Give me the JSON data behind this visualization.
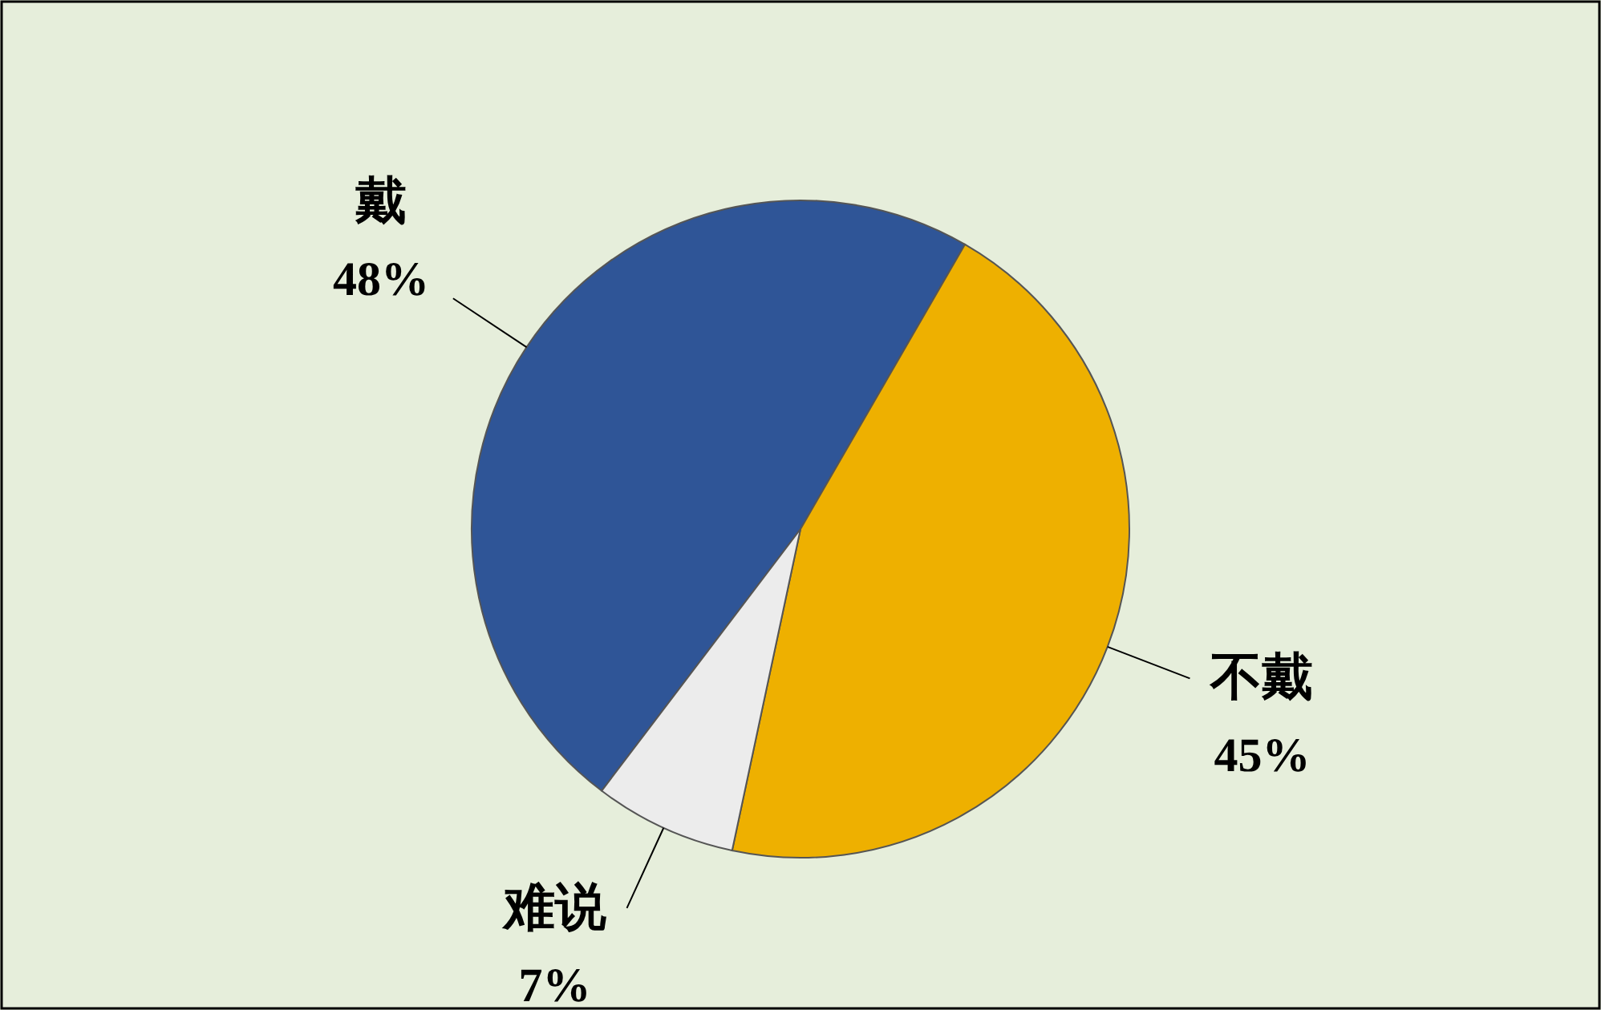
{
  "chart_data": {
    "type": "pie",
    "categories": [
      "戴",
      "不戴",
      "难说"
    ],
    "values": [
      48,
      45,
      7
    ],
    "value_labels": [
      "48%",
      "45%",
      "7%"
    ],
    "colors": [
      "#2f5597",
      "#eeb000",
      "#ececec"
    ]
  }
}
